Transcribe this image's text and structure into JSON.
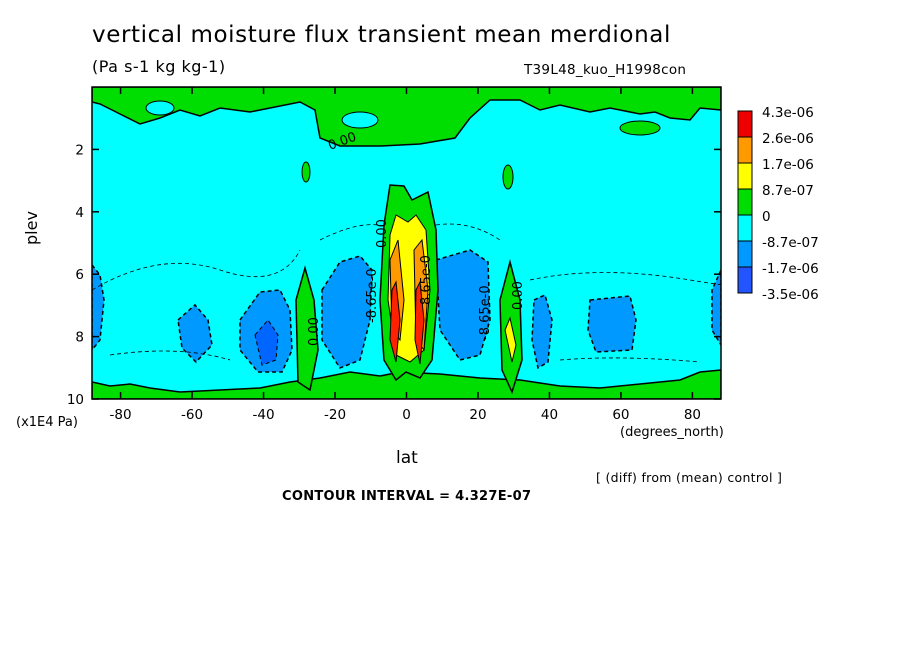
{
  "chart_data": {
    "type": "contour",
    "title": "vertical moisture flux transient mean merdional",
    "units": "(Pa s-1 kg kg-1)",
    "run": "T39L48_kuo_H1998con",
    "xlabel": "lat",
    "x_units": "(degrees_north)",
    "ylabel": "plev",
    "y_units": "(x1E4 Pa)",
    "xlim": [
      -88,
      88
    ],
    "ylim": [
      0,
      10
    ],
    "y_inverted": true,
    "x_ticks": [
      -80,
      -60,
      -40,
      -20,
      0,
      20,
      40,
      60,
      80
    ],
    "y_ticks": [
      2,
      4,
      6,
      8,
      10
    ],
    "contour_interval": "CONTOUR INTERVAL = 4.327E-07",
    "diff_note": "[ (diff) from (mean) control ]",
    "contour_labels": [
      "0.00",
      "0.00",
      "-8.65e-0",
      "-8.65e-0",
      "8.65e-0",
      "0.00",
      "0.00",
      "0.00"
    ],
    "legend": {
      "labels": [
        "4.3e-06",
        "2.6e-06",
        "1.7e-06",
        "8.7e-07",
        "0",
        "-8.7e-07",
        "-1.7e-06",
        "-3.5e-06"
      ],
      "colors": [
        "#ff0000",
        "#ff9900",
        "#ffff00",
        "#00dd00",
        "#00ffff",
        "#0099ff",
        "#0066ff",
        "#dd0000",
        "#ff8800",
        "#ffff22",
        "#22ee22",
        "#22eeee",
        "#1a9bff",
        "#2a5bff"
      ]
    },
    "fill_colors": {
      "very_high": "#ff2200",
      "high": "#ff9900",
      "mid_high": "#ffff00",
      "low_pos": "#00dd00",
      "zero": "#00ffff",
      "low_neg": "#0099ff",
      "mid_neg": "#0066ff",
      "very_neg": "#2255ff"
    }
  }
}
